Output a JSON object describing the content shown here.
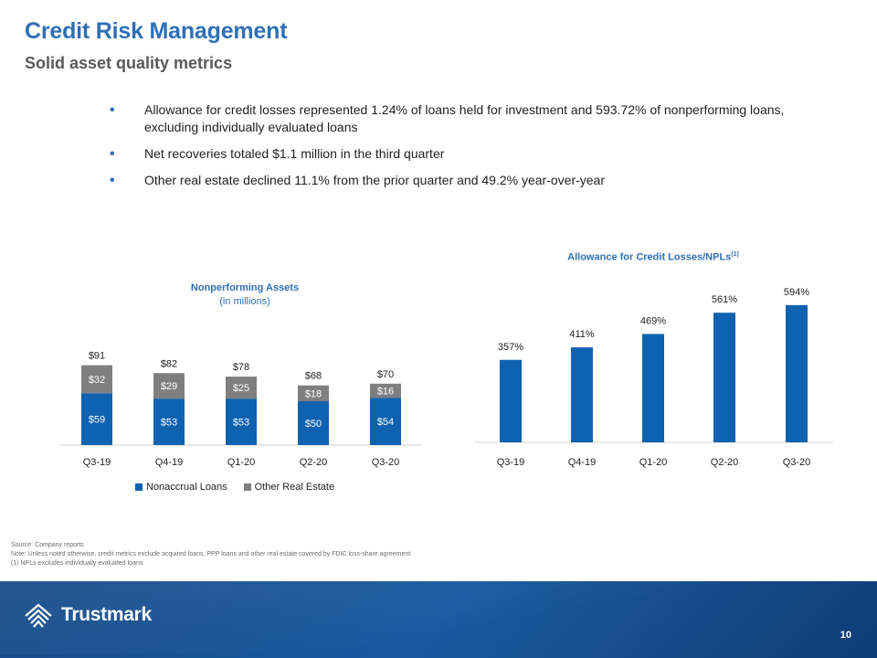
{
  "header": {
    "title": "Credit Risk Management",
    "subtitle": "Solid asset quality metrics"
  },
  "bullets": [
    "Allowance for credit losses represented 1.24% of loans held for investment and 593.72% of nonperforming loans, excluding individually evaluated loans",
    "Net recoveries totaled $1.1 million in the third quarter",
    "Other real estate declined 11.1% from the prior quarter and 49.2% year-over-year"
  ],
  "chart_data": [
    {
      "type": "bar",
      "stacked": true,
      "title": "Nonperforming Assets",
      "subtitle": "(in millions)",
      "categories": [
        "Q3-19",
        "Q4-19",
        "Q1-20",
        "Q2-20",
        "Q3-20"
      ],
      "series": [
        {
          "name": "Nonaccrual Loans",
          "values": [
            59,
            53,
            53,
            50,
            54
          ],
          "labels": [
            "$59",
            "$53",
            "$53",
            "$50",
            "$54"
          ],
          "color": "#0f62b0"
        },
        {
          "name": "Other Real Estate",
          "values": [
            32,
            29,
            25,
            18,
            16
          ],
          "labels": [
            "$32",
            "$29",
            "$25",
            "$18",
            "$16"
          ],
          "color": "#7f7f7f"
        }
      ],
      "totals": [
        "$91",
        "$82",
        "$78",
        "$68",
        "$70"
      ],
      "ylim": [
        0,
        100
      ],
      "grid": false,
      "legend": "bottom"
    },
    {
      "type": "bar",
      "title": "Allowance for Credit Losses/NPLs",
      "title_sup": "(1)",
      "categories": [
        "Q3-19",
        "Q4-19",
        "Q1-20",
        "Q2-20",
        "Q3-20"
      ],
      "values": [
        357,
        411,
        469,
        561,
        594
      ],
      "labels": [
        "357%",
        "411%",
        "469%",
        "561%",
        "594%"
      ],
      "color": "#0f62b0",
      "ylim": [
        0,
        620
      ],
      "grid": false
    }
  ],
  "notes": [
    "Source: Company reports",
    "Note: Unless noted otherwise, credit metrics exclude acquired loans, PPP loans and other real estate covered by FDIC loss-share agreement",
    "(1) NPLs excludes individually evaluated loans"
  ],
  "footer": {
    "logo_text": "Trustmark",
    "page_number": "10"
  },
  "colors": {
    "accent": "#2f6fb5",
    "bar_blue": "#0f62b0",
    "bar_gray": "#7f7f7f",
    "footer_bg": "#1b5aa0"
  }
}
